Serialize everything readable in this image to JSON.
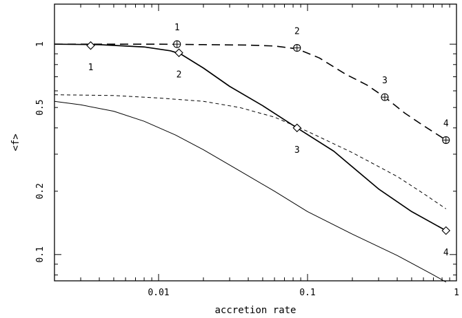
{
  "chart_data": {
    "type": "line",
    "title": "",
    "xlabel": "accretion rate",
    "ylabel": "<f>",
    "xscale": "log",
    "yscale": "log",
    "xlim": [
      0.002,
      1.0
    ],
    "ylim": [
      0.075,
      1.55
    ],
    "grid": false,
    "legend": "none",
    "x_ticks": [
      {
        "value": 0.01,
        "label": "0.01"
      },
      {
        "value": 0.1,
        "label": "0.1"
      },
      {
        "value": 1,
        "label": "1"
      }
    ],
    "y_ticks": [
      {
        "value": 0.1,
        "label": "0.1"
      },
      {
        "value": 0.2,
        "label": "0.2"
      },
      {
        "value": 0.5,
        "label": "0.5"
      },
      {
        "value": 1,
        "label": "1"
      }
    ],
    "series": [
      {
        "style": "long-dash",
        "marker": "circle-plus",
        "x": [
          0.002,
          0.005,
          0.01,
          0.02,
          0.04,
          0.06,
          0.085,
          0.12,
          0.18,
          0.25,
          0.33,
          0.45,
          0.6,
          0.85
        ],
        "y": [
          1.0,
          1.0,
          1.0,
          0.995,
          0.99,
          0.98,
          0.95,
          0.86,
          0.72,
          0.64,
          0.56,
          0.47,
          0.41,
          0.35
        ],
        "markers": [
          {
            "x": 0.0133,
            "y": 1.0,
            "label": "1"
          },
          {
            "x": 0.085,
            "y": 0.96,
            "label": "2"
          },
          {
            "x": 0.33,
            "y": 0.56,
            "label": "3"
          },
          {
            "x": 0.85,
            "y": 0.35,
            "label": "4"
          }
        ]
      },
      {
        "style": "solid-thick",
        "marker": "diamond",
        "x": [
          0.002,
          0.004,
          0.008,
          0.012,
          0.014,
          0.02,
          0.03,
          0.05,
          0.085,
          0.15,
          0.3,
          0.5,
          0.85
        ],
        "y": [
          1.0,
          0.995,
          0.97,
          0.93,
          0.9,
          0.77,
          0.63,
          0.51,
          0.4,
          0.31,
          0.205,
          0.16,
          0.13
        ],
        "markers": [
          {
            "x": 0.0035,
            "y": 0.985,
            "label": "1"
          },
          {
            "x": 0.0137,
            "y": 0.91,
            "label": "2"
          },
          {
            "x": 0.085,
            "y": 0.4,
            "label": "3"
          },
          {
            "x": 0.85,
            "y": 0.13,
            "label": "4"
          }
        ]
      },
      {
        "style": "short-dash",
        "marker": "none",
        "x": [
          0.002,
          0.005,
          0.01,
          0.02,
          0.035,
          0.06,
          0.1,
          0.2,
          0.4,
          0.6,
          0.85
        ],
        "y": [
          0.575,
          0.57,
          0.555,
          0.535,
          0.5,
          0.45,
          0.385,
          0.305,
          0.235,
          0.195,
          0.165
        ]
      },
      {
        "style": "solid-thin",
        "marker": "none",
        "x": [
          0.002,
          0.003,
          0.005,
          0.008,
          0.013,
          0.02,
          0.035,
          0.06,
          0.1,
          0.2,
          0.4,
          0.7,
          0.85
        ],
        "y": [
          0.535,
          0.515,
          0.48,
          0.43,
          0.37,
          0.315,
          0.25,
          0.2,
          0.16,
          0.125,
          0.099,
          0.08,
          0.074
        ]
      }
    ]
  }
}
